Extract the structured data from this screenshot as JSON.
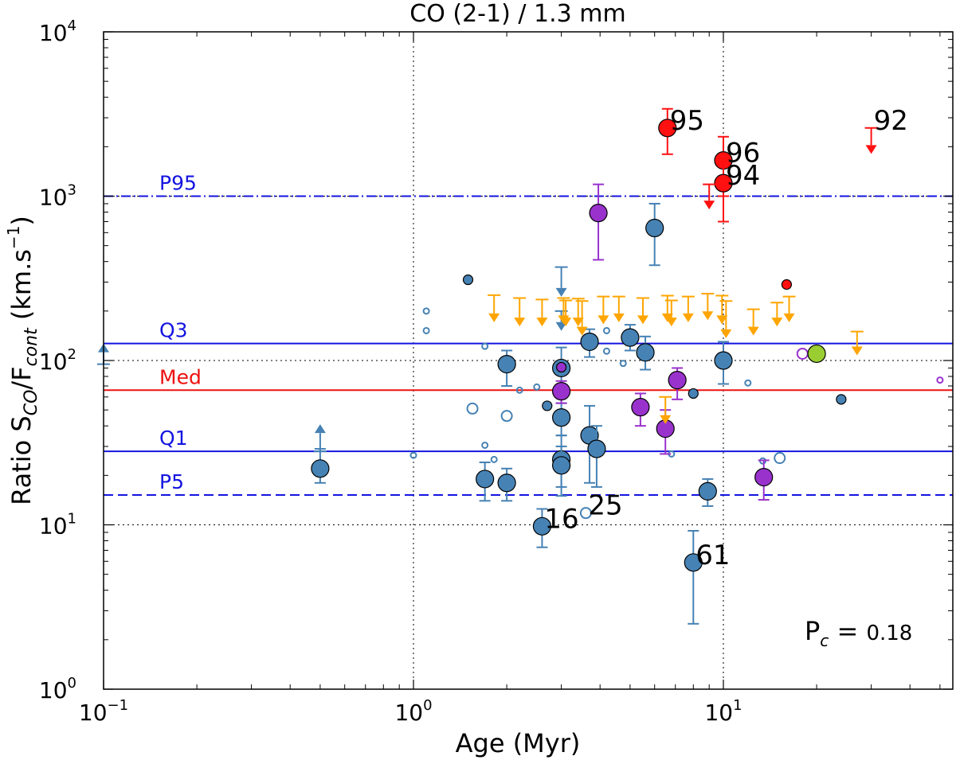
{
  "chart_data": {
    "type": "scatter",
    "title": "CO (2-1) / 1.3 mm",
    "xlabel": "Age (Myr)",
    "ylabel_main": "Ratio S",
    "ylabel_sub1": "CO",
    "ylabel_mid": "/F",
    "ylabel_sub2": "cont",
    "ylabel_units": " (km.s",
    "ylabel_exp": "−1",
    "ylabel_close": ")",
    "xscale": "log",
    "yscale": "log",
    "xlim": [
      0.1,
      55
    ],
    "ylim": [
      1,
      10000
    ],
    "x_ticks": [
      {
        "value": 0.1,
        "base": "10",
        "exp": "−1"
      },
      {
        "value": 1,
        "base": "10",
        "exp": "0"
      },
      {
        "value": 10,
        "base": "10",
        "exp": "1"
      }
    ],
    "y_ticks": [
      {
        "value": 1,
        "base": "10",
        "exp": "0"
      },
      {
        "value": 10,
        "base": "10",
        "exp": "1"
      },
      {
        "value": 100,
        "base": "10",
        "exp": "2"
      },
      {
        "value": 1000,
        "base": "10",
        "exp": "3"
      },
      {
        "value": 10000,
        "base": "10",
        "exp": "4"
      }
    ],
    "grid": "dotted at decades",
    "reference_lines": [
      {
        "label": "P95",
        "value": 1000,
        "color": "#1414e0",
        "style": "dashdot"
      },
      {
        "label": "Q3",
        "value": 127,
        "color": "#1414e0",
        "style": "solid"
      },
      {
        "label": "Med",
        "value": 66,
        "color": "#ee1111",
        "style": "solid"
      },
      {
        "label": "Q1",
        "value": 28,
        "color": "#1414e0",
        "style": "solid"
      },
      {
        "label": "P5",
        "value": 15.2,
        "color": "#1414e0",
        "style": "dashed"
      }
    ],
    "pc_label": "P",
    "pc_sub": "c",
    "pc_eq": " = ",
    "pc_value": "0.18",
    "colors": {
      "blue": "#4682b4",
      "purple": "#9932cc",
      "red": "#ff1111",
      "orange": "#ffa500",
      "green": "#9acd32"
    },
    "series": [
      {
        "name": "steelblue detections (large)",
        "color": "#4682b4",
        "points": [
          {
            "x": 0.5,
            "y": 22,
            "err": [
              18,
              29
            ]
          },
          {
            "x": 1.7,
            "y": 19,
            "err": [
              14,
              24
            ]
          },
          {
            "x": 2.0,
            "y": 18,
            "err": [
              14,
              22
            ]
          },
          {
            "x": 2.0,
            "y": 95,
            "err": [
              70,
              115
            ]
          },
          {
            "x": 2.6,
            "y": 9.8,
            "err": [
              7.3,
              12.5
            ],
            "label": "16"
          },
          {
            "x": 3.0,
            "y": 90,
            "err": [
              65,
              120
            ]
          },
          {
            "x": 3.0,
            "y": 45,
            "err": [
              35,
              55
            ]
          },
          {
            "x": 3.0,
            "y": 25,
            "err": [
              15,
              35
            ]
          },
          {
            "x": 3.0,
            "y": 23,
            "err": [
              17,
              30
            ]
          },
          {
            "x": 3.7,
            "y": 130,
            "err": [
              105,
              155
            ]
          },
          {
            "x": 3.7,
            "y": 35,
            "err": [
              18,
              53
            ]
          },
          {
            "x": 3.9,
            "y": 29,
            "err": [
              17,
              40
            ]
          },
          {
            "x": 5.0,
            "y": 138,
            "err": [
              115,
              165
            ]
          },
          {
            "x": 5.6,
            "y": 112,
            "err": [
              88,
              140
            ]
          },
          {
            "x": 6.0,
            "y": 640,
            "err": [
              380,
              900
            ]
          },
          {
            "x": 8.0,
            "y": 5.9,
            "err": [
              2.5,
              9.2
            ],
            "label": "61"
          },
          {
            "x": 8.9,
            "y": 16,
            "err": [
              13,
              19
            ]
          },
          {
            "x": 10.0,
            "y": 100,
            "err": [
              72,
              130
            ]
          }
        ]
      },
      {
        "name": "steelblue detections (small)",
        "color": "#4682b4",
        "points": [
          {
            "x": 1.5,
            "y": 310
          },
          {
            "x": 2.7,
            "y": 53
          },
          {
            "x": 8.0,
            "y": 63
          },
          {
            "x": 24.0,
            "y": 58
          }
        ]
      },
      {
        "name": "steelblue open (non-detections)",
        "color": "#4682b4",
        "points": [
          {
            "x": 1.0,
            "y": 26.5,
            "size": "s"
          },
          {
            "x": 1.1,
            "y": 200,
            "size": "s"
          },
          {
            "x": 1.1,
            "y": 152,
            "size": "s"
          },
          {
            "x": 1.55,
            "y": 51,
            "size": "m"
          },
          {
            "x": 1.7,
            "y": 122,
            "size": "s"
          },
          {
            "x": 1.7,
            "y": 30.5,
            "size": "s"
          },
          {
            "x": 1.82,
            "y": 25,
            "size": "s"
          },
          {
            "x": 2.0,
            "y": 46,
            "size": "m"
          },
          {
            "x": 2.2,
            "y": 66,
            "size": "s"
          },
          {
            "x": 2.5,
            "y": 69,
            "size": "s"
          },
          {
            "x": 3.6,
            "y": 11.8,
            "size": "m",
            "label": "25"
          },
          {
            "x": 4.2,
            "y": 152,
            "size": "s"
          },
          {
            "x": 4.2,
            "y": 114,
            "size": "s"
          },
          {
            "x": 4.75,
            "y": 96,
            "size": "s"
          },
          {
            "x": 6.8,
            "y": 27,
            "size": "s"
          },
          {
            "x": 12.0,
            "y": 73,
            "size": "s"
          },
          {
            "x": 13.4,
            "y": 24.5,
            "size": "s"
          },
          {
            "x": 15.2,
            "y": 25.5,
            "size": "m"
          }
        ]
      },
      {
        "name": "steelblue limits",
        "color": "#4682b4",
        "arrows": [
          {
            "x": 0.1,
            "y": 95,
            "dir": "up"
          },
          {
            "x": 0.5,
            "y": 28,
            "dir": "up",
            "to": 40
          },
          {
            "x": 3.0,
            "y": 370,
            "dir": "down",
            "to": 250
          },
          {
            "x": 3.0,
            "y": 200,
            "dir": "down",
            "to": 155
          }
        ]
      },
      {
        "name": "purple detections",
        "color": "#9932cc",
        "points": [
          {
            "x": 3.0,
            "y": 65,
            "err": [
              55,
              75
            ]
          },
          {
            "x": 3.95,
            "y": 790,
            "err": [
              410,
              1180
            ]
          },
          {
            "x": 5.4,
            "y": 52,
            "err": [
              40,
              63
            ]
          },
          {
            "x": 6.5,
            "y": 38.5,
            "err": [
              27,
              50
            ]
          },
          {
            "x": 7.1,
            "y": 76,
            "err": [
              58,
              90
            ]
          },
          {
            "x": 13.5,
            "y": 19.5,
            "err": [
              14.2,
              24.7
            ]
          }
        ]
      },
      {
        "name": "purple small",
        "color": "#9932cc",
        "points": [
          {
            "x": 3.0,
            "y": 91
          }
        ]
      },
      {
        "name": "purple open",
        "color": "#9932cc",
        "points": [
          {
            "x": 18.0,
            "y": 110,
            "size": "m"
          },
          {
            "x": 50.0,
            "y": 76,
            "size": "s"
          }
        ]
      },
      {
        "name": "red detections",
        "color": "#ff1111",
        "points": [
          {
            "x": 6.6,
            "y": 2600,
            "err": [
              1800,
              3400
            ],
            "label": "95"
          },
          {
            "x": 10.0,
            "y": 1650,
            "err": [
              1000,
              2300
            ],
            "label": "96"
          },
          {
            "x": 10.0,
            "y": 1200,
            "err": [
              700,
              1700
            ],
            "label": "94"
          }
        ]
      },
      {
        "name": "red small",
        "color": "#ff1111",
        "points": [
          {
            "x": 16.0,
            "y": 290
          }
        ]
      },
      {
        "name": "red upper limits",
        "color": "#ff1111",
        "arrows": [
          {
            "x": 9.0,
            "y": 1180,
            "dir": "down",
            "to": 850
          },
          {
            "x": 30.0,
            "y": 2600,
            "dir": "down",
            "to": 1850,
            "label": "92"
          }
        ]
      },
      {
        "name": "green detection",
        "color": "#9acd32",
        "points": [
          {
            "x": 20.0,
            "y": 110
          }
        ]
      },
      {
        "name": "orange upper limits",
        "color": "#ffa500",
        "arrows": [
          {
            "x": 1.82,
            "y": 250,
            "dir": "down",
            "to": 175
          },
          {
            "x": 2.2,
            "y": 240,
            "dir": "down",
            "to": 165
          },
          {
            "x": 2.6,
            "y": 235,
            "dir": "down",
            "to": 165
          },
          {
            "x": 3.05,
            "y": 240,
            "dir": "down",
            "to": 170
          },
          {
            "x": 3.1,
            "y": 232,
            "dir": "down",
            "to": 165
          },
          {
            "x": 3.4,
            "y": 238,
            "dir": "down",
            "to": 165
          },
          {
            "x": 3.5,
            "y": 230,
            "dir": "down",
            "to": 145
          },
          {
            "x": 4.1,
            "y": 245,
            "dir": "down",
            "to": 170
          },
          {
            "x": 4.6,
            "y": 245,
            "dir": "down",
            "to": 175
          },
          {
            "x": 5.5,
            "y": 240,
            "dir": "down",
            "to": 170
          },
          {
            "x": 6.6,
            "y": 248,
            "dir": "down",
            "to": 175
          },
          {
            "x": 6.8,
            "y": 232,
            "dir": "down",
            "to": 165
          },
          {
            "x": 7.7,
            "y": 245,
            "dir": "down",
            "to": 175
          },
          {
            "x": 8.9,
            "y": 255,
            "dir": "down",
            "to": 180
          },
          {
            "x": 9.9,
            "y": 248,
            "dir": "down",
            "to": 170
          },
          {
            "x": 10.2,
            "y": 230,
            "dir": "down",
            "to": 140
          },
          {
            "x": 12.5,
            "y": 205,
            "dir": "down",
            "to": 145
          },
          {
            "x": 14.9,
            "y": 225,
            "dir": "down",
            "to": 165
          },
          {
            "x": 16.3,
            "y": 245,
            "dir": "down",
            "to": 175
          },
          {
            "x": 27.0,
            "y": 150,
            "dir": "down",
            "to": 110
          },
          {
            "x": 6.5,
            "y": 60,
            "dir": "down",
            "to": 42
          }
        ]
      }
    ]
  }
}
